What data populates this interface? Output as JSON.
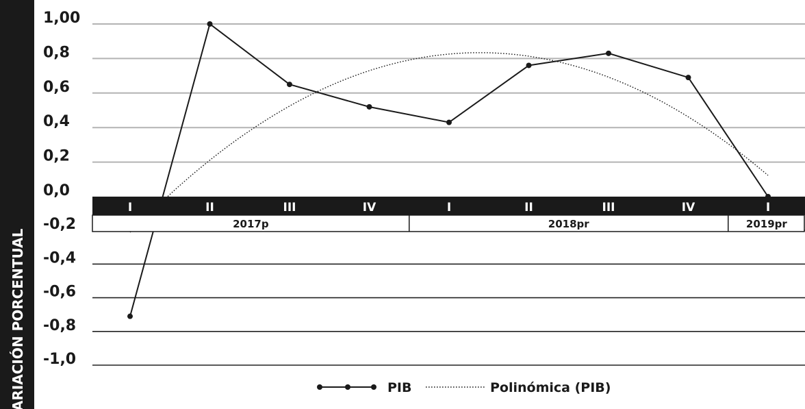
{
  "chart_data": {
    "type": "line",
    "ylabel": "VARIACIÓN PORCENTUAL",
    "ylim": [
      -1.0,
      1.0
    ],
    "y_ticks": [
      "1,00",
      "0,8",
      "0,6",
      "0,4",
      "0,2",
      "0,0",
      "-0,2",
      "-0,4",
      "-0,6",
      "-0,8",
      "-1,0"
    ],
    "categories": [
      "I",
      "II",
      "III",
      "IV",
      "I",
      "II",
      "III",
      "IV",
      "I"
    ],
    "years": [
      "2017p",
      "2018pr",
      "2019pr"
    ],
    "series": [
      {
        "name": "PIB",
        "values": [
          -0.71,
          1.0,
          0.65,
          0.52,
          0.43,
          0.76,
          0.83,
          0.69,
          0.0
        ]
      }
    ],
    "trendline": {
      "name": "Polinómica (PIB)",
      "type": "polynomial"
    },
    "grid": true,
    "legend": "bottom-center"
  },
  "colors": {
    "line": "#1a1a1a",
    "band": "#1a1a1a",
    "grid": "#b3b3b3",
    "band_text": "#ffffff"
  }
}
